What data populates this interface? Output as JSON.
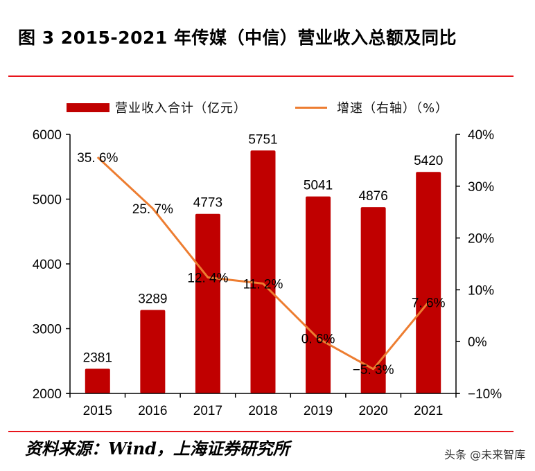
{
  "title": "图 3 2015-2021 年传媒（中信）营业收入总额及同比",
  "source": "资料来源：Wind，上海证券研究所",
  "watermark": "头条 @未来智库",
  "colors": {
    "bar": "#c00000",
    "line": "#ed7d31",
    "rule": "#e8141b"
  },
  "chart_data": {
    "type": "bar+line",
    "title": "2015-2021 年传媒（中信）营业收入总额及同比",
    "categories": [
      "2015",
      "2016",
      "2017",
      "2018",
      "2019",
      "2020",
      "2021"
    ],
    "series": [
      {
        "name": "营业收入合计（亿元）",
        "type": "bar",
        "axis": "left",
        "values": [
          2381,
          3289,
          4773,
          5751,
          5041,
          4876,
          5420
        ],
        "labels": [
          "2381",
          "3289",
          "4773",
          "5751",
          "5041",
          "4876",
          "5420"
        ]
      },
      {
        "name": "增速（右轴）（%）",
        "type": "line",
        "axis": "right",
        "values": [
          35.6,
          25.7,
          12.4,
          11.2,
          0.6,
          -5.3,
          7.6
        ],
        "labels": [
          "35. 6%",
          "25. 7%",
          "12. 4%",
          "11. 2%",
          "0. 6%",
          "−5. 3%",
          "7. 6%"
        ]
      }
    ],
    "left_axis": {
      "ylim": [
        2000,
        6000
      ],
      "ticks": [
        2000,
        3000,
        4000,
        5000,
        6000
      ],
      "tick_labels": [
        "2000",
        "3000",
        "4000",
        "5000",
        "6000"
      ]
    },
    "right_axis": {
      "ylim": [
        -10,
        40
      ],
      "ticks": [
        -10,
        0,
        10,
        20,
        30,
        40
      ],
      "tick_labels": [
        "−10%",
        "0%",
        "10%",
        "20%",
        "30%",
        "40%"
      ]
    },
    "legend": {
      "placement": "top",
      "entries": [
        "营业收入合计（亿元）",
        "增速（右轴）（%）"
      ]
    },
    "grid": false
  }
}
